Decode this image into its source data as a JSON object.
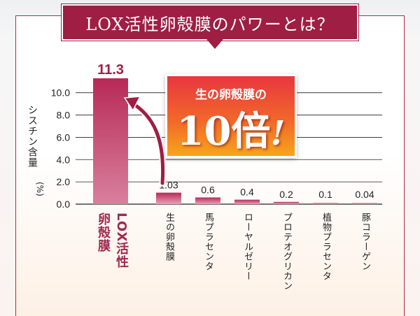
{
  "title": "LOX活性卵殻膜のパワーとは？",
  "callout": {
    "line1": "生の卵殻膜の",
    "line2": "10倍",
    "mark": "!"
  },
  "colors": {
    "accent": "#9e1f43",
    "highlight_bar": "#b72a56",
    "bar": "#c9557a",
    "callout_top": "#e8363f",
    "callout_bottom": "#f7a51c"
  },
  "chart_data": {
    "type": "bar",
    "title": "LOX活性卵殻膜のパワーとは？",
    "ylabel": "シスチン含量",
    "yunit": "(%)",
    "ylim": [
      0,
      11.3
    ],
    "yticks": [
      "0.0",
      "2.0",
      "4.0",
      "6.0",
      "8.0",
      "10.0"
    ],
    "grid": true,
    "categories": [
      "LOX活性卵殻膜",
      "生の卵殻膜",
      "馬プラセンタ",
      "ローヤルゼリー",
      "プロテオグリカン",
      "植物プラセンタ",
      "豚コラーゲン"
    ],
    "category_lines": [
      [
        "卵殻膜",
        "LOX活性"
      ],
      [
        "生の卵殻膜"
      ],
      [
        "馬プラセンタ"
      ],
      [
        "ローヤルゼリー"
      ],
      [
        "プロテオグリカン"
      ],
      [
        "植物プラセンタ"
      ],
      [
        "豚コラーゲン"
      ]
    ],
    "values": [
      11.3,
      1.03,
      0.6,
      0.4,
      0.2,
      0.1,
      0.04
    ],
    "value_labels": [
      "11.3",
      "1.03",
      "0.6",
      "0.4",
      "0.2",
      "0.1",
      "0.04"
    ]
  }
}
